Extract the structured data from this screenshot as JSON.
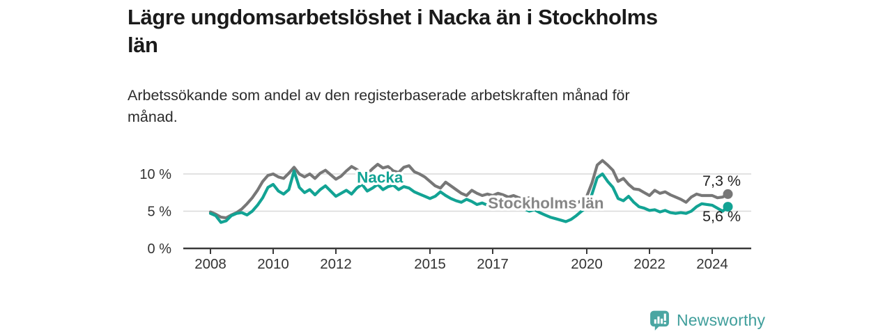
{
  "header": {
    "title_line1": "Lägre ungdomsarbetslöshet i Nacka än i Stockholms",
    "title_line2": "län",
    "subtitle_line1": "Arbetssökande som andel av den registerbaserade arbetskraften månad för",
    "subtitle_line2": "månad."
  },
  "chart_data": {
    "type": "line",
    "unit": "%",
    "grid": "horizontal",
    "legend_position": "inline-labels",
    "x_start": 2008,
    "x_step_years": 0.16667,
    "xlim": [
      2007.2,
      2025.2
    ],
    "ylim": [
      0,
      13
    ],
    "y_ticks": [
      {
        "value": 0,
        "label": "0 %"
      },
      {
        "value": 5,
        "label": "5 %"
      },
      {
        "value": 10,
        "label": "10 %"
      }
    ],
    "x_ticks": [
      {
        "value": 2008,
        "label": "2008"
      },
      {
        "value": 2010,
        "label": "2010"
      },
      {
        "value": 2012,
        "label": "2012"
      },
      {
        "value": 2015,
        "label": "2015"
      },
      {
        "value": 2017,
        "label": "2017"
      },
      {
        "value": 2020,
        "label": "2020"
      },
      {
        "value": 2022,
        "label": "2022"
      },
      {
        "value": 2024,
        "label": "2024"
      }
    ],
    "series": [
      {
        "name": "Stockholms län",
        "color": "#777777",
        "label_color": "#868686",
        "end_label": "7,3 %",
        "end_value": 7.3,
        "values": [
          4.9,
          4.6,
          4.2,
          4.1,
          4.5,
          4.8,
          5.3,
          6.0,
          6.8,
          7.8,
          9.0,
          9.8,
          10.0,
          9.6,
          9.4,
          10.1,
          10.9,
          10.0,
          9.6,
          10.0,
          9.4,
          10.1,
          10.5,
          9.9,
          9.3,
          9.7,
          10.4,
          11.0,
          10.6,
          10.1,
          10.0,
          10.7,
          11.3,
          10.8,
          11.0,
          10.4,
          10.2,
          10.9,
          11.1,
          10.3,
          10.0,
          9.6,
          9.0,
          8.4,
          8.1,
          8.9,
          8.4,
          7.9,
          7.4,
          7.1,
          7.8,
          7.4,
          7.1,
          7.3,
          7.1,
          7.4,
          7.2,
          6.9,
          7.1,
          6.8,
          6.6,
          6.8,
          6.5,
          6.3,
          6.5,
          6.2,
          6.0,
          6.2,
          6.0,
          6.3,
          6.1,
          6.4,
          7.0,
          8.8,
          11.2,
          11.8,
          11.2,
          10.5,
          9.0,
          9.4,
          8.6,
          8.0,
          7.9,
          7.5,
          7.1,
          7.8,
          7.4,
          7.6,
          7.2,
          6.9,
          6.6,
          6.2,
          6.9,
          7.3,
          7.1,
          7.1,
          7.1,
          6.8,
          6.9,
          7.3
        ]
      },
      {
        "name": "Nacka",
        "color": "#12a394",
        "label_color": "#12a394",
        "end_label": "5,6 %",
        "end_value": 5.6,
        "values": [
          4.7,
          4.4,
          3.5,
          3.7,
          4.4,
          4.7,
          4.8,
          4.5,
          5.0,
          5.8,
          6.8,
          8.2,
          8.6,
          7.7,
          7.3,
          7.9,
          10.4,
          8.2,
          7.5,
          7.9,
          7.2,
          7.9,
          8.4,
          7.7,
          7.0,
          7.4,
          7.8,
          7.3,
          8.1,
          8.6,
          7.7,
          8.1,
          8.6,
          7.9,
          8.3,
          8.5,
          7.9,
          8.3,
          8.1,
          7.6,
          7.3,
          7.0,
          6.7,
          7.0,
          7.6,
          7.1,
          6.7,
          6.4,
          6.2,
          6.6,
          6.3,
          5.9,
          6.1,
          5.8,
          5.7,
          5.9,
          5.7,
          5.8,
          5.6,
          5.7,
          5.3,
          5.0,
          5.2,
          4.8,
          4.5,
          4.2,
          4.0,
          3.8,
          3.6,
          3.9,
          4.4,
          5.0,
          5.5,
          7.3,
          9.5,
          10.0,
          9.0,
          8.2,
          6.7,
          6.4,
          7.0,
          6.2,
          5.6,
          5.4,
          5.1,
          5.2,
          4.9,
          5.1,
          4.8,
          4.7,
          4.8,
          4.7,
          5.0,
          5.6,
          6.0,
          5.9,
          5.8,
          5.4,
          5.0,
          5.6
        ]
      }
    ],
    "annotations": [
      {
        "text": "Nacka",
        "series": 1,
        "x": 2012.67,
        "y": 9.6,
        "color": "#12a394"
      },
      {
        "text": "Stockholms län",
        "series": 0,
        "x": 2016.85,
        "y": 6.1,
        "color": "#868686"
      }
    ]
  },
  "footer": {
    "brand": "Newsworthy",
    "logo_icon": "bar-chart-speech-bubble",
    "brand_color": "#3f9e9b",
    "badge_color": "#4aa6a2"
  }
}
